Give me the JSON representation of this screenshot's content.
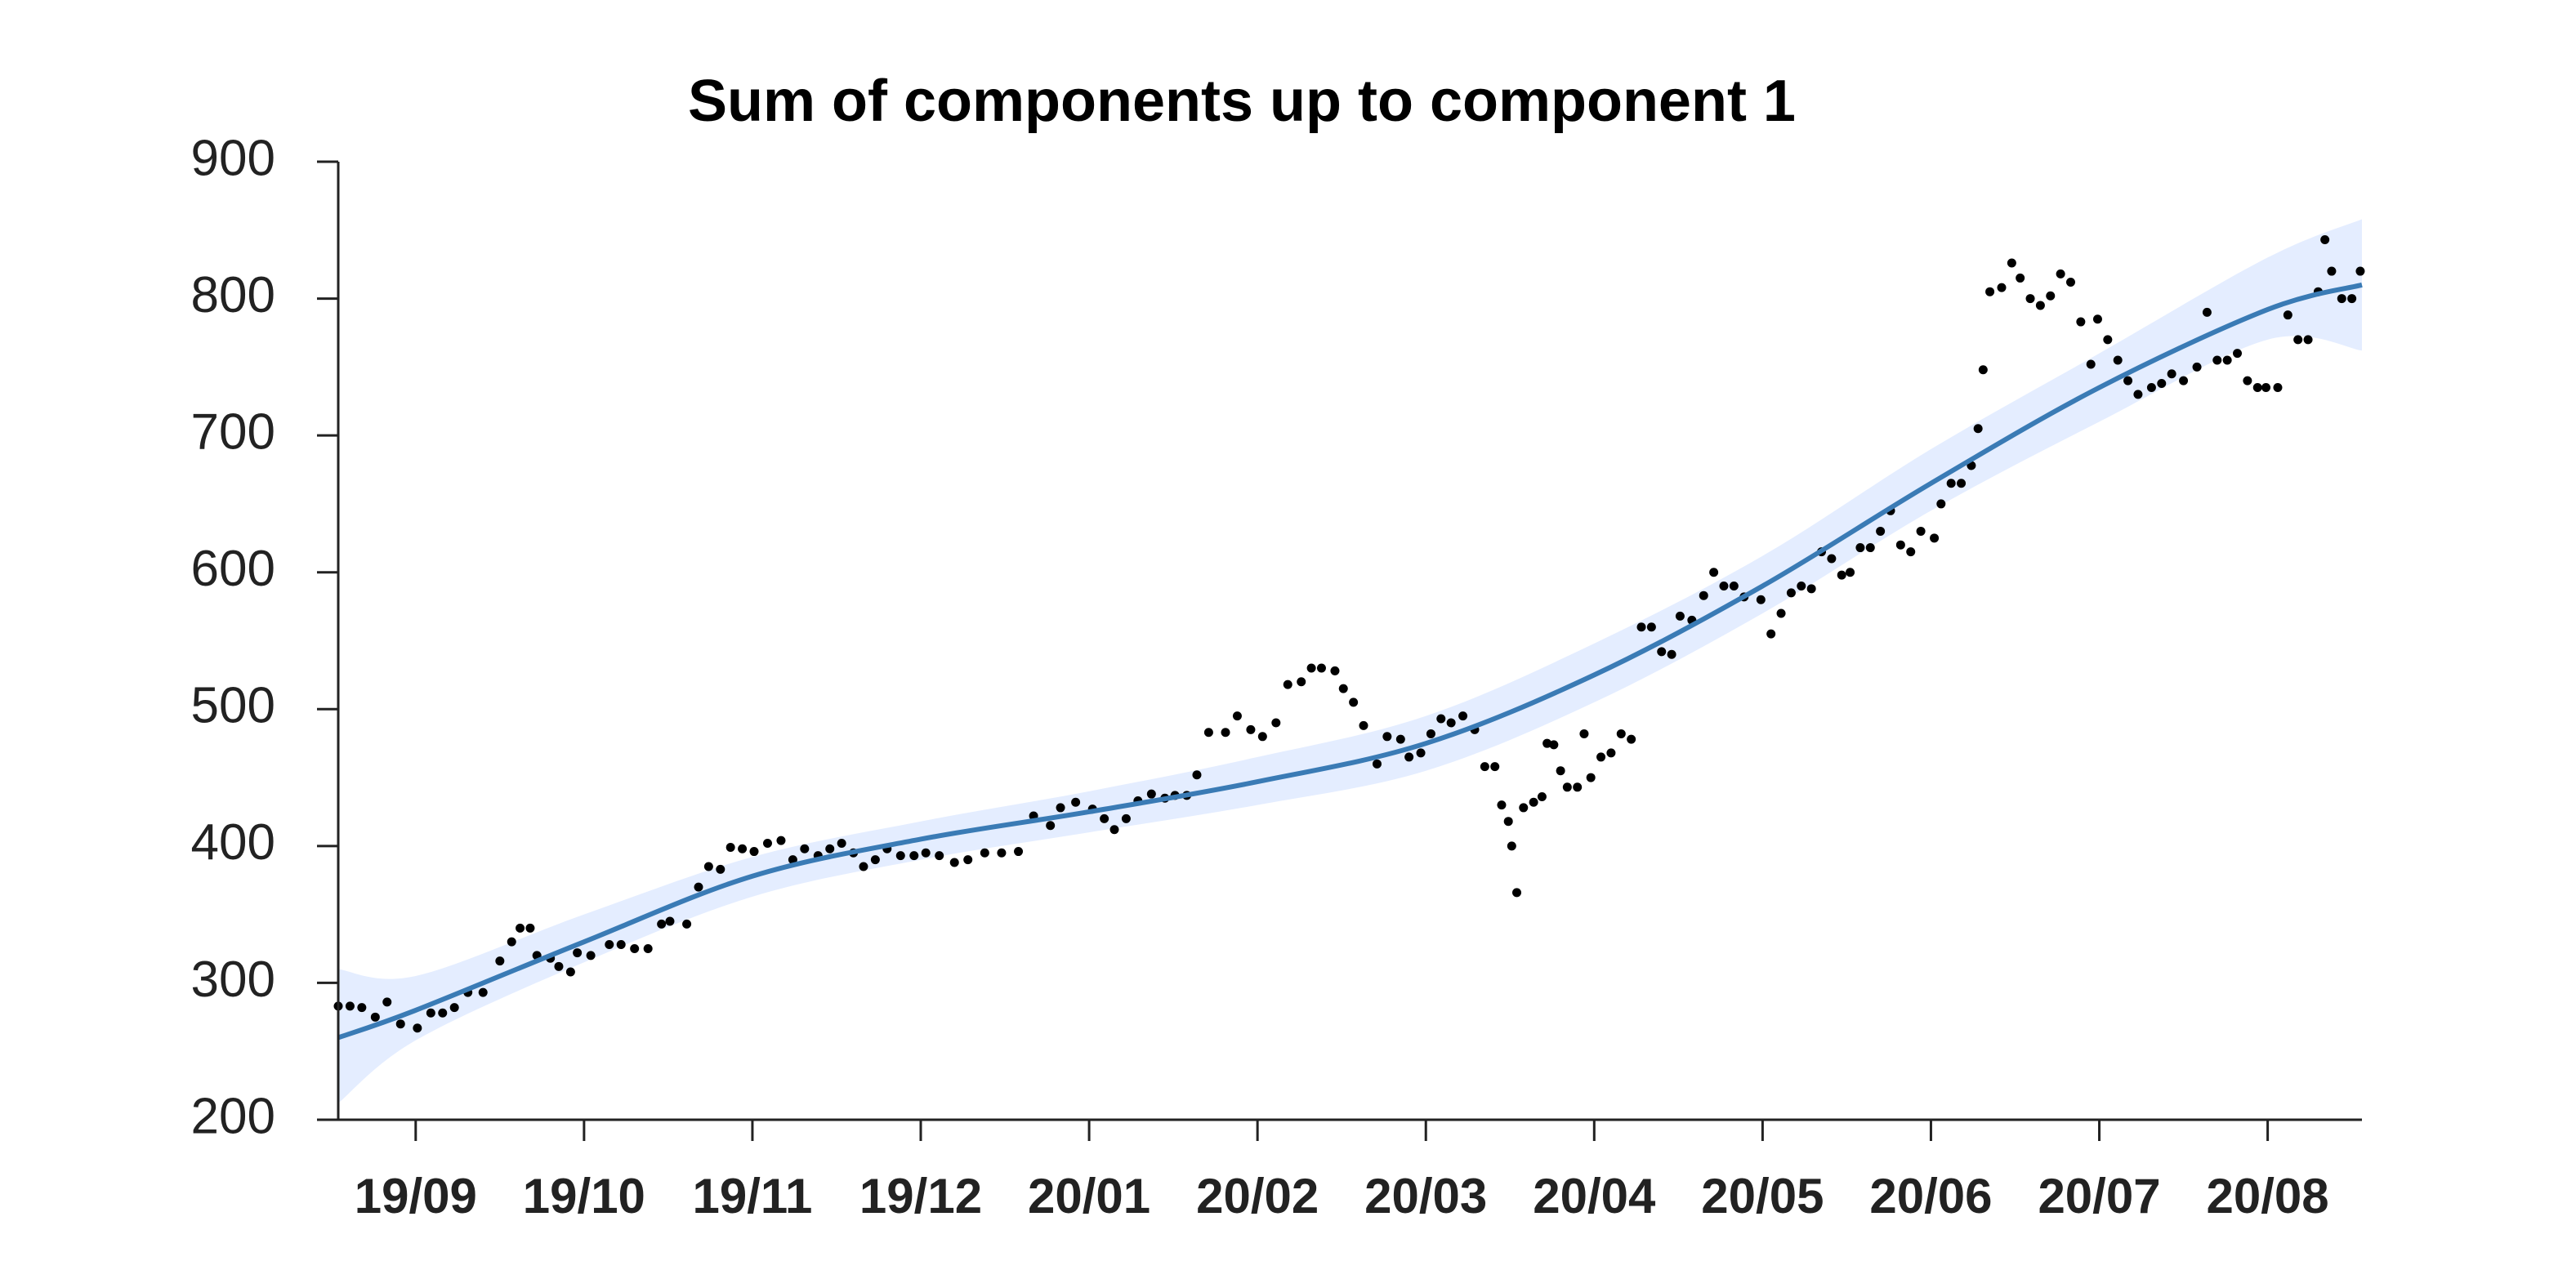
{
  "chart_data": {
    "type": "scatter",
    "title": "Sum of components up to component 1",
    "x": [
      -0.46,
      -0.39,
      -0.32,
      -0.24,
      -0.17,
      -0.09,
      0.01,
      0.09,
      0.16,
      0.23,
      0.31,
      0.4,
      0.5,
      0.57,
      0.62,
      0.68,
      0.72,
      0.8,
      0.85,
      0.92,
      0.96,
      1.04,
      1.15,
      1.22,
      1.3,
      1.38,
      1.46,
      1.51,
      1.61,
      1.68,
      1.74,
      1.81,
      1.87,
      1.94,
      2.01,
      2.09,
      2.17,
      2.24,
      2.31,
      2.39,
      2.46,
      2.53,
      2.6,
      2.66,
      2.73,
      2.8,
      2.88,
      2.96,
      3.03,
      3.11,
      3.2,
      3.28,
      3.38,
      3.48,
      3.58,
      3.67,
      3.77,
      3.83,
      3.92,
      4.02,
      4.09,
      4.15,
      4.22,
      4.29,
      4.37,
      4.45,
      4.51,
      4.58,
      4.64,
      4.71,
      4.81,
      4.88,
      4.96,
      5.03,
      5.11,
      5.18,
      5.26,
      5.32,
      5.38,
      5.46,
      5.51,
      5.57,
      5.63,
      5.71,
      5.77,
      5.85,
      5.9,
      5.97,
      6.03,
      6.09,
      6.15,
      6.22,
      6.29,
      6.35,
      6.41,
      6.45,
      6.49,
      6.51,
      6.54,
      6.58,
      6.64,
      6.69,
      6.72,
      6.76,
      6.8,
      6.84,
      6.9,
      6.94,
      6.98,
      7.04,
      7.1,
      7.16,
      7.22,
      7.28,
      7.34,
      7.4,
      7.46,
      7.51,
      7.58,
      7.65,
      7.71,
      7.77,
      7.83,
      7.89,
      7.99,
      8.05,
      8.11,
      8.17,
      8.23,
      8.29,
      8.35,
      8.41,
      8.47,
      8.52,
      8.58,
      8.64,
      8.7,
      8.76,
      8.82,
      8.88,
      8.94,
      9.02,
      9.06,
      9.12,
      9.18,
      9.24,
      9.28,
      9.31,
      9.35,
      9.42,
      9.48,
      9.53,
      9.59,
      9.65,
      9.71,
      9.77,
      9.83,
      9.89,
      9.95,
      9.99,
      10.05,
      10.11,
      10.17,
      10.23,
      10.31,
      10.37,
      10.43,
      10.5,
      10.58,
      10.64,
      10.7,
      10.76,
      10.82,
      10.88,
      10.94,
      10.99,
      11.06,
      11.12,
      11.18,
      11.24,
      11.3,
      11.34,
      11.38,
      11.44,
      11.5,
      11.55
    ],
    "values": [
      283,
      283,
      282,
      275,
      286,
      270,
      267,
      278,
      278,
      282,
      293,
      293,
      316,
      330,
      340,
      340,
      320,
      318,
      312,
      308,
      322,
      320,
      328,
      328,
      325,
      325,
      343,
      345,
      343,
      370,
      385,
      383,
      399,
      398,
      396,
      402,
      404,
      390,
      398,
      393,
      398,
      402,
      395,
      385,
      390,
      398,
      393,
      393,
      395,
      393,
      388,
      390,
      395,
      395,
      396,
      422,
      415,
      428,
      432,
      427,
      420,
      412,
      420,
      433,
      438,
      435,
      437,
      437,
      452,
      483,
      483,
      495,
      485,
      480,
      490,
      518,
      520,
      530,
      530,
      528,
      515,
      505,
      488,
      460,
      480,
      478,
      465,
      468,
      482,
      493,
      490,
      495,
      485,
      458,
      458,
      430,
      418,
      400,
      366,
      428,
      432,
      436,
      475,
      474,
      455,
      443,
      443,
      482,
      450,
      465,
      468,
      482,
      478,
      560,
      560,
      542,
      540,
      568,
      565,
      583,
      600,
      590,
      590,
      582,
      580,
      555,
      570,
      585,
      590,
      588,
      615,
      610,
      598,
      600,
      618,
      618,
      630,
      645,
      620,
      615,
      630,
      625,
      650,
      665,
      665,
      678,
      705,
      748,
      805,
      808,
      826,
      815,
      800,
      795,
      802,
      818,
      812,
      783,
      752,
      785,
      770,
      755,
      740,
      730,
      735,
      738,
      745,
      740,
      750,
      790,
      755,
      755,
      760,
      740,
      735,
      735,
      735,
      788,
      770,
      770,
      805,
      843,
      820,
      800,
      800,
      820
    ],
    "point_color": "#000000",
    "fit": {
      "color": "#3a7bb5",
      "band_color": "#e4edff",
      "x": [
        -0.46,
        0,
        1,
        2,
        3,
        4,
        5,
        6,
        7,
        8,
        9,
        10,
        11,
        11.56
      ],
      "values": [
        260,
        280,
        330,
        378,
        405,
        425,
        447,
        475,
        525,
        590,
        665,
        735,
        792,
        810
      ],
      "lower": [
        212,
        258,
        315,
        363,
        390,
        410,
        430,
        455,
        505,
        570,
        645,
        710,
        770,
        762
      ],
      "upper": [
        310,
        305,
        350,
        392,
        418,
        440,
        465,
        495,
        548,
        612,
        690,
        760,
        830,
        858
      ]
    },
    "xlim": [
      -0.46,
      11.56
    ],
    "xticks": [
      {
        "value": 0,
        "label": "19/09"
      },
      {
        "value": 1,
        "label": "19/10"
      },
      {
        "value": 2,
        "label": "19/11"
      },
      {
        "value": 3,
        "label": "19/12"
      },
      {
        "value": 4,
        "label": "20/01"
      },
      {
        "value": 5,
        "label": "20/02"
      },
      {
        "value": 6,
        "label": "20/03"
      },
      {
        "value": 7,
        "label": "20/04"
      },
      {
        "value": 8,
        "label": "20/05"
      },
      {
        "value": 9,
        "label": "20/06"
      },
      {
        "value": 10,
        "label": "20/07"
      },
      {
        "value": 11,
        "label": "20/08"
      }
    ],
    "ylim": [
      200,
      900
    ],
    "yticks": [
      200,
      300,
      400,
      500,
      600,
      700,
      800,
      900
    ]
  }
}
